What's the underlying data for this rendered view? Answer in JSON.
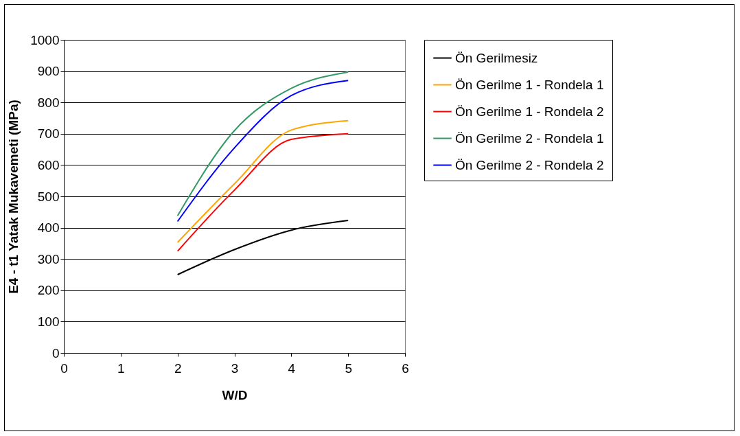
{
  "chart_data": {
    "type": "line",
    "xlabel": "W/D",
    "ylabel": "E4 - t1 Yatak Mukavemeti (MPa)",
    "x": [
      2,
      3,
      4,
      5
    ],
    "series": [
      {
        "name": "Ön Gerilmesiz",
        "color": "#000000",
        "values": [
          250,
          330,
          392,
          423
        ]
      },
      {
        "name": "Ön Gerilme 1 - Rondela 1",
        "color": "#ffa500",
        "values": [
          353,
          540,
          712,
          742
        ]
      },
      {
        "name": "Ön Gerilme 1 - Rondela 2",
        "color": "#ff0000",
        "values": [
          325,
          520,
          682,
          700
        ]
      },
      {
        "name": "Ön Gerilme 2 - Rondela 1",
        "color": "#339966",
        "values": [
          438,
          710,
          845,
          897
        ]
      },
      {
        "name": "Ön Gerilme 2 - Rondela 2",
        "color": "#0000ff",
        "values": [
          420,
          655,
          822,
          870
        ]
      }
    ],
    "xlim": [
      0,
      6
    ],
    "xticks": [
      0,
      1,
      2,
      3,
      4,
      5,
      6
    ],
    "ylim": [
      0,
      1000
    ],
    "yticks": [
      0,
      100,
      200,
      300,
      400,
      500,
      600,
      700,
      800,
      900,
      1000
    ],
    "grid": "y",
    "legend": "right",
    "marker": "none",
    "line_style": "solid"
  }
}
